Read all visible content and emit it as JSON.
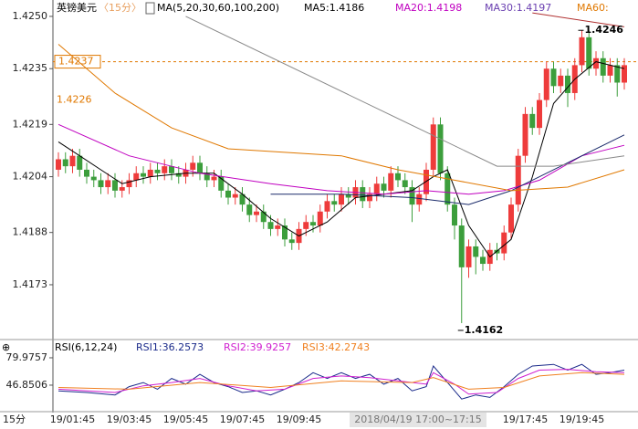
{
  "chart_data": [
    {
      "type": "candlestick",
      "title": "英镑美元",
      "period_label": "〈15分〉",
      "indicator_label": "MA(5,20,30,60,100,200)",
      "indicator_values": [
        {
          "text": "MA5:1.4186",
          "color": "#000000"
        },
        {
          "text": "MA20:1.4198",
          "color": "#c000c0"
        },
        {
          "text": "MA30:1.4197",
          "color": "#6a3fb0"
        },
        {
          "text": "MA60:",
          "color": "#e07800"
        }
      ],
      "period": "15分",
      "crosshair_label": "2018/04/19 17:00~17:15",
      "up_color": "#ee3b3b",
      "down_color": "#3c9e3c",
      "ylim": [
        1.41578,
        1.42547
      ],
      "yticks": [
        {
          "value": 1.425,
          "label": "1.4250"
        },
        1.4235,
        1.4219,
        1.4204,
        1.4188,
        1.4173
      ],
      "categories": [
        null,
        null,
        "19/01:45",
        null,
        null,
        null,
        null,
        null,
        null,
        null,
        "19/03:45",
        null,
        null,
        null,
        null,
        null,
        null,
        null,
        "19/05:45",
        null,
        null,
        null,
        null,
        null,
        null,
        null,
        "19/07:45",
        null,
        null,
        null,
        null,
        null,
        null,
        null,
        "19/09:45",
        null,
        null,
        null,
        null,
        null,
        null,
        null,
        null,
        null,
        null,
        null,
        null,
        null,
        null,
        null,
        null,
        null,
        null,
        null,
        null,
        null,
        null,
        null,
        null,
        null,
        null,
        null,
        null,
        null,
        null,
        null,
        "19/17:45",
        null,
        null,
        null,
        null,
        null,
        null,
        null,
        "19/19:45",
        null,
        null,
        null,
        null,
        null,
        null
      ],
      "open": [
        1.4206,
        1.4209,
        1.4207,
        1.421,
        1.4206,
        1.4204,
        1.4203,
        1.4201,
        1.4203,
        1.42,
        1.4201,
        1.4203,
        1.4205,
        1.4204,
        1.4206,
        1.4205,
        1.4207,
        1.4205,
        1.4204,
        1.4206,
        1.4208,
        1.4205,
        1.4203,
        1.4204,
        1.42,
        1.4198,
        1.4199,
        1.4196,
        1.4193,
        1.4194,
        1.4191,
        1.4189,
        1.419,
        1.4186,
        1.4185,
        1.4189,
        1.4191,
        1.419,
        1.4194,
        1.4197,
        1.4196,
        1.4199,
        1.4198,
        1.4201,
        1.4197,
        1.4199,
        1.4202,
        1.42,
        1.4205,
        1.4203,
        1.4201,
        1.4196,
        1.4199,
        1.4206,
        1.4219,
        1.4205,
        1.4196,
        1.419,
        1.4178,
        1.4184,
        1.4181,
        1.4179,
        1.4183,
        1.4182,
        1.4188,
        1.4196,
        1.421,
        1.4222,
        1.4218,
        1.4226,
        1.4235,
        1.423,
        1.4233,
        1.4228,
        1.4236,
        1.4244,
        1.4235,
        1.4238,
        1.4233,
        1.4236,
        1.4231
      ],
      "high": [
        1.4211,
        1.4211,
        1.4212,
        1.4212,
        1.4208,
        1.4206,
        1.4205,
        1.4205,
        1.4205,
        1.4203,
        1.4205,
        1.4207,
        1.4207,
        1.4208,
        1.4208,
        1.4209,
        1.4209,
        1.4207,
        1.4208,
        1.421,
        1.421,
        1.4207,
        1.4206,
        1.4206,
        1.4202,
        1.4201,
        1.4201,
        1.4198,
        1.4196,
        1.4196,
        1.4193,
        1.4192,
        1.4192,
        1.4188,
        1.4191,
        1.4193,
        1.4193,
        1.4196,
        1.4199,
        1.4199,
        1.4201,
        1.4201,
        1.4203,
        1.4203,
        1.4201,
        1.4204,
        1.4204,
        1.4207,
        1.4207,
        1.4205,
        1.4203,
        1.4201,
        1.4208,
        1.4221,
        1.4221,
        1.4207,
        1.4198,
        1.4192,
        1.4186,
        1.4186,
        1.4183,
        1.4185,
        1.4185,
        1.419,
        1.4198,
        1.4212,
        1.4224,
        1.4224,
        1.4228,
        1.4237,
        1.4237,
        1.4235,
        1.4235,
        1.4238,
        1.4246,
        1.4246,
        1.424,
        1.424,
        1.4238,
        1.4238,
        1.4238
      ],
      "low": [
        1.4204,
        1.4205,
        1.4205,
        1.4204,
        1.4202,
        1.4201,
        1.4199,
        1.4199,
        1.4198,
        1.4198,
        1.4199,
        1.4201,
        1.4202,
        1.4202,
        1.4203,
        1.4203,
        1.4203,
        1.4202,
        1.4202,
        1.4204,
        1.4203,
        1.4201,
        1.4201,
        1.4198,
        1.4196,
        1.4196,
        1.4194,
        1.4191,
        1.4191,
        1.4189,
        1.4187,
        1.4187,
        1.4184,
        1.4183,
        1.4183,
        1.4187,
        1.4188,
        1.4188,
        1.4192,
        1.4194,
        1.4194,
        1.4196,
        1.4196,
        1.4195,
        1.4195,
        1.4197,
        1.4198,
        1.4198,
        1.4201,
        1.4199,
        1.4191,
        1.4194,
        1.4197,
        1.4204,
        1.4203,
        1.4194,
        1.4186,
        1.4162,
        1.4175,
        1.4176,
        1.4177,
        1.4177,
        1.418,
        1.418,
        1.4186,
        1.4194,
        1.4208,
        1.4216,
        1.4216,
        1.4224,
        1.4228,
        1.4228,
        1.4224,
        1.4226,
        1.4234,
        1.4233,
        1.4233,
        1.4231,
        1.4231,
        1.4227,
        1.4229
      ],
      "close": [
        1.4209,
        1.4207,
        1.421,
        1.4206,
        1.4204,
        1.4203,
        1.4201,
        1.4203,
        1.42,
        1.4201,
        1.4203,
        1.4205,
        1.4204,
        1.4206,
        1.4205,
        1.4207,
        1.4205,
        1.4204,
        1.4206,
        1.4208,
        1.4205,
        1.4203,
        1.4204,
        1.42,
        1.4198,
        1.4199,
        1.4196,
        1.4193,
        1.4194,
        1.4191,
        1.4189,
        1.419,
        1.4186,
        1.4185,
        1.4189,
        1.4191,
        1.419,
        1.4194,
        1.4197,
        1.4196,
        1.4199,
        1.4198,
        1.4201,
        1.4197,
        1.4199,
        1.4202,
        1.42,
        1.4205,
        1.4203,
        1.4201,
        1.4196,
        1.4199,
        1.4206,
        1.4219,
        1.4205,
        1.4196,
        1.419,
        1.4178,
        1.4184,
        1.4181,
        1.4179,
        1.4183,
        1.4182,
        1.4188,
        1.4196,
        1.421,
        1.4222,
        1.4218,
        1.4226,
        1.4235,
        1.423,
        1.4233,
        1.4228,
        1.4236,
        1.4244,
        1.4235,
        1.4238,
        1.4233,
        1.4236,
        1.4231,
        1.4236
      ],
      "lines": [
        {
          "color": "#000000",
          "x": [
            0,
            3,
            6,
            9,
            13,
            18,
            22,
            26,
            30,
            34,
            38,
            42,
            46,
            50,
            53,
            55,
            58,
            61,
            64,
            67,
            70,
            73,
            76,
            80
          ],
          "values": [
            1.4214,
            1.421,
            1.4206,
            1.4202,
            1.4204,
            1.4205,
            1.4205,
            1.4199,
            1.4192,
            1.4187,
            1.4191,
            1.4198,
            1.4199,
            1.42,
            1.4204,
            1.4206,
            1.419,
            1.4181,
            1.4186,
            1.4204,
            1.4225,
            1.4232,
            1.4237,
            1.4235
          ]
        },
        {
          "color": "#c000c0",
          "x": [
            0,
            10,
            20,
            30,
            38,
            46,
            52,
            58,
            63,
            68,
            74,
            80
          ],
          "values": [
            1.4219,
            1.421,
            1.4205,
            1.4202,
            1.42,
            1.4199,
            1.42,
            1.4199,
            1.42,
            1.4203,
            1.421,
            1.4213
          ]
        },
        {
          "color": "#1a2a6a",
          "x": [
            30,
            40,
            50,
            58,
            64,
            72,
            80
          ],
          "values": [
            1.4199,
            1.4199,
            1.4198,
            1.4196,
            1.42,
            1.4208,
            1.4216
          ]
        },
        {
          "color": "#e07800",
          "x": [
            0,
            8,
            16,
            24,
            32,
            40,
            48,
            56,
            64,
            72,
            80
          ],
          "values": [
            1.4242,
            1.4228,
            1.4218,
            1.4212,
            1.4211,
            1.421,
            1.4206,
            1.4203,
            1.42,
            1.4201,
            1.4206
          ]
        },
        {
          "color": "#888888",
          "x": [
            18,
            62,
            70,
            80
          ],
          "values": [
            1.425,
            1.4207,
            1.4207,
            1.421
          ]
        },
        {
          "color": "#b03030",
          "x": [
            67,
            80
          ],
          "values": [
            1.4251,
            1.4247
          ]
        }
      ],
      "price_line": 1.4237,
      "start_label": 1.4226,
      "annotations": [
        {
          "value": 1.4246,
          "x": 74
        },
        {
          "value": 1.4162,
          "x": 57
        }
      ]
    },
    {
      "type": "line",
      "title": "RSI(6,12,24)",
      "ylim": [
        18.1,
        93.2
      ],
      "yticks": [
        79.9757,
        46.8506
      ],
      "series": [
        {
          "name": "RSI1:36.2573",
          "color": "#1a2a8a",
          "x": [
            0,
            4,
            8,
            10,
            12,
            14,
            16,
            18,
            20,
            22,
            24,
            26,
            28,
            30,
            32,
            34,
            36,
            38,
            40,
            42,
            44,
            46,
            48,
            50,
            52,
            53,
            55,
            57,
            59,
            61,
            63,
            65,
            67,
            70,
            72,
            74,
            76,
            78,
            80
          ],
          "values": [
            40,
            38,
            35,
            45,
            50,
            42,
            55,
            48,
            60,
            50,
            45,
            38,
            40,
            35,
            42,
            50,
            62,
            55,
            62,
            55,
            60,
            48,
            55,
            40,
            45,
            70,
            50,
            30,
            35,
            32,
            45,
            60,
            70,
            72,
            65,
            72,
            60,
            62,
            65
          ]
        },
        {
          "name": "RSI2:39.9257",
          "color": "#d020d0",
          "x": [
            0,
            8,
            12,
            16,
            20,
            24,
            28,
            32,
            36,
            40,
            44,
            48,
            52,
            53,
            56,
            58,
            62,
            65,
            68,
            72,
            76,
            80
          ],
          "values": [
            42,
            38,
            46,
            50,
            55,
            46,
            40,
            42,
            55,
            58,
            56,
            52,
            48,
            62,
            48,
            36,
            38,
            55,
            65,
            66,
            63,
            62
          ]
        },
        {
          "name": "RSI3:42.2743",
          "color": "#f08020",
          "x": [
            0,
            10,
            20,
            30,
            40,
            50,
            53,
            58,
            63,
            68,
            74,
            80
          ],
          "values": [
            44,
            42,
            50,
            44,
            52,
            50,
            56,
            42,
            44,
            58,
            62,
            60
          ]
        }
      ]
    }
  ]
}
